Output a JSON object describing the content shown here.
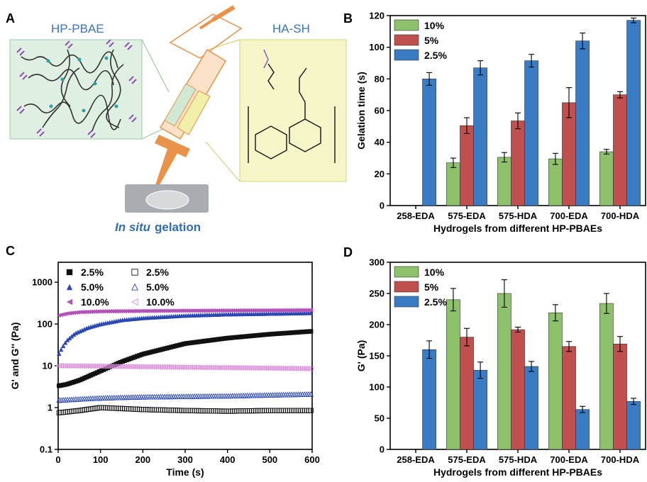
{
  "colors": {
    "green": "#8dc26b",
    "red": "#c0504d",
    "blue": "#3a7cc4",
    "black": "#111111",
    "navy": "#2b47b3",
    "purple": "#b251b8",
    "pink": "#d98ad8",
    "caption_blue": "#2f6db5"
  },
  "panel_a": {
    "letter": "A",
    "left_label": "HP-PBAE",
    "right_label": "HA-SH",
    "caption_italic": "In situ",
    "caption_rest": "gelation"
  },
  "panel_b": {
    "letter": "B"
  },
  "panel_c": {
    "letter": "C"
  },
  "panel_d": {
    "letter": "D"
  },
  "chart_data": [
    {
      "panel": "B",
      "type": "bar",
      "categories": [
        "258-EDA",
        "575-EDA",
        "575-HDA",
        "700-EDA",
        "700-HDA"
      ],
      "series": [
        {
          "name": "10%",
          "values": [
            null,
            27,
            30.5,
            29.5,
            34
          ],
          "errors": [
            null,
            3,
            3,
            3.5,
            1.5
          ],
          "color": "green"
        },
        {
          "name": "5%",
          "values": [
            null,
            50.5,
            53.5,
            65,
            70
          ],
          "errors": [
            null,
            5,
            5,
            9.5,
            2
          ],
          "color": "red"
        },
        {
          "name": "2.5%",
          "values": [
            80,
            87,
            91.5,
            104,
            117
          ],
          "errors": [
            4,
            4.5,
            4,
            5,
            1.5
          ],
          "color": "blue"
        }
      ],
      "xlabel": "Hydrogels from different HP-PBAEs",
      "ylabel": "Gelation time (s)",
      "ylim": [
        0,
        120
      ],
      "yticks": [
        0,
        20,
        40,
        60,
        80,
        100,
        120
      ],
      "legend_position": "top-left"
    },
    {
      "panel": "C",
      "type": "scatter",
      "xlabel": "Time (s)",
      "ylabel": "G' and G'' (Pa)",
      "xlim": [
        0,
        600
      ],
      "ylim": [
        0.1,
        3000
      ],
      "yscale": "log",
      "xticks": [
        0,
        100,
        200,
        300,
        400,
        500,
        600
      ],
      "yticks": [
        "0.1",
        "1",
        "10",
        "100",
        "1000"
      ],
      "series": [
        {
          "name": "2.5%",
          "marker": "filled-square",
          "color": "black",
          "x": [
            0,
            20,
            50,
            100,
            150,
            200,
            300,
            400,
            500,
            600
          ],
          "y": [
            3.3,
            3.6,
            4.5,
            7.5,
            12.5,
            19,
            34,
            46,
            57,
            67
          ]
        },
        {
          "name": "5.0%",
          "marker": "filled-triangle-up",
          "color": "navy",
          "x": [
            0,
            10,
            20,
            40,
            70,
            100,
            150,
            200,
            300,
            400,
            500,
            600
          ],
          "y": [
            18,
            28,
            40,
            60,
            82,
            100,
            125,
            140,
            160,
            172,
            178,
            185
          ]
        },
        {
          "name": "10.0%",
          "marker": "filled-triangle-left",
          "color": "purple",
          "x": [
            0,
            20,
            50,
            100,
            200,
            300,
            400,
            500,
            600
          ],
          "y": [
            160,
            178,
            192,
            200,
            205,
            208,
            210,
            212,
            215
          ]
        },
        {
          "name": "2.5%",
          "marker": "open-square",
          "color": "black",
          "x": [
            0,
            50,
            100,
            200,
            300,
            400,
            500,
            600
          ],
          "y": [
            0.75,
            0.85,
            1.0,
            0.9,
            0.85,
            0.82,
            0.85,
            0.85
          ]
        },
        {
          "name": "5.0%",
          "marker": "open-triangle-up",
          "color": "navy",
          "x": [
            0,
            50,
            100,
            200,
            300,
            400,
            500,
            600
          ],
          "y": [
            1.5,
            1.6,
            1.7,
            1.8,
            1.85,
            1.9,
            2.0,
            2.1
          ]
        },
        {
          "name": "10.0%",
          "marker": "open-triangle-left",
          "color": "pink",
          "x": [
            0,
            100,
            200,
            300,
            400,
            500,
            600
          ],
          "y": [
            10,
            9.8,
            9.5,
            9.2,
            9.0,
            8.8,
            8.5
          ]
        }
      ],
      "legend_position": "top-left"
    },
    {
      "panel": "D",
      "type": "bar",
      "categories": [
        "258-EDA",
        "575-EDA",
        "575-HDA",
        "700-EDA",
        "700-HDA"
      ],
      "series": [
        {
          "name": "10%",
          "values": [
            null,
            240,
            250,
            219,
            234
          ],
          "errors": [
            null,
            18,
            22,
            13,
            16
          ],
          "color": "green"
        },
        {
          "name": "5%",
          "values": [
            null,
            180,
            192,
            165,
            169
          ],
          "errors": [
            null,
            14,
            4,
            8,
            12
          ],
          "color": "red"
        },
        {
          "name": "2.5%",
          "values": [
            160,
            127,
            133,
            64,
            77
          ],
          "errors": [
            14,
            13,
            8,
            5,
            5
          ],
          "color": "blue"
        }
      ],
      "xlabel": "Hydrogels from different HP-PBAEs",
      "ylabel": "G' (Pa)",
      "ylim": [
        0,
        300
      ],
      "yticks": [
        0,
        50,
        100,
        150,
        200,
        250,
        300
      ],
      "legend_position": "top-left"
    }
  ]
}
